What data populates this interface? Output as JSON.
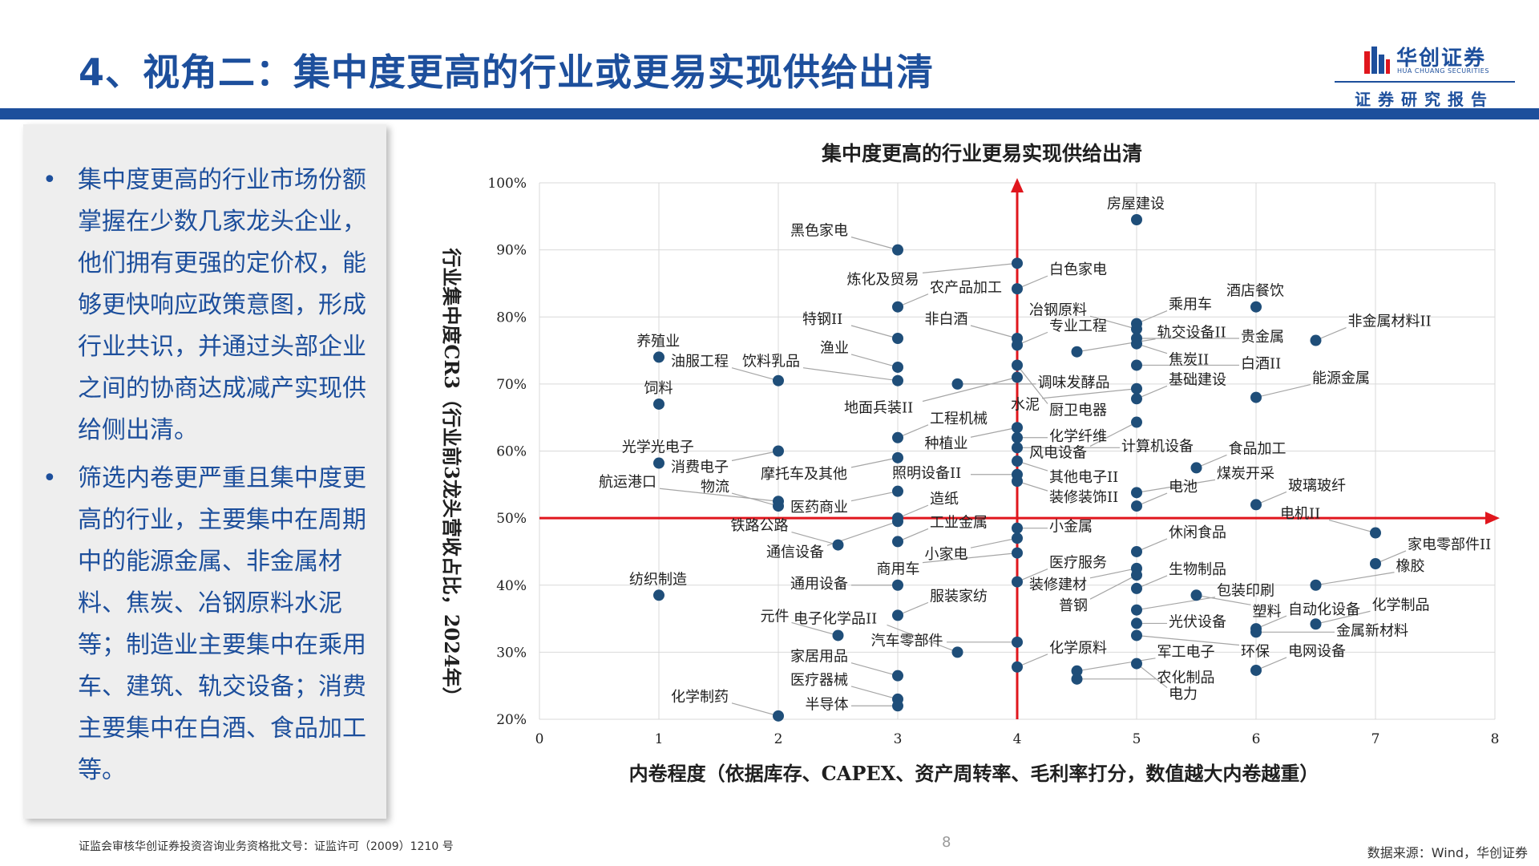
{
  "header": {
    "title": "4、视角二：集中度更高的行业或更易实现供给出清",
    "logo_name": "华创证券",
    "logo_en": "HUA CHUANG SECURITIES",
    "report_tag": "证券研究报告"
  },
  "sidebar": {
    "bullets": [
      "集中度更高的行业市场份额掌握在少数几家龙头企业，他们拥有更强的定价权，能够更快响应政策意图，形成行业共识，并通过头部企业之间的协商达成减产实现供给侧出清。",
      "筛选内卷更严重且集中度更高的行业，主要集中在周期中的能源金属、非金属材料、焦炭、冶钢原料水泥等；制造业主要集中在乘用车、建筑、轨交设备；消费主要集中在白酒、食品加工等。"
    ],
    "bullet_symbol": "•"
  },
  "footer": {
    "license": "证监会审核华创证券投资咨询业务资格批文号：证监许可（2009）1210 号",
    "page_number": "8",
    "source": "数据来源：Wind，华创证券"
  },
  "colors": {
    "brand": "#1d4f9c",
    "point": "#1f4e79",
    "reference_line": "#e0161d",
    "grid": "#d9d9d9"
  },
  "chart_data": {
    "type": "scatter",
    "title": "集中度更高的行业更易实现供给出清",
    "xlabel": "内卷程度（依据库存、CAPEX、资产周转率、毛利率打分，数值越大内卷越重）",
    "ylabel": "行业集中度CR3（行业前3龙头营收占比，2024年）",
    "xlim": [
      0,
      8
    ],
    "ylim": [
      20,
      100
    ],
    "x_ticks": [
      "0",
      "1",
      "2",
      "3",
      "4",
      "5",
      "6",
      "7",
      "8"
    ],
    "y_ticks": [
      "20%",
      "30%",
      "40%",
      "50%",
      "60%",
      "70%",
      "80%",
      "90%",
      "100%"
    ],
    "reference_lines": {
      "x": 4,
      "y": 50
    },
    "grid": true,
    "points": [
      {
        "label": "养殖业",
        "x": 1,
        "y": 74
      },
      {
        "label": "饲料",
        "x": 1,
        "y": 67
      },
      {
        "label": "光学光电子",
        "x": 1,
        "y": 58.2
      },
      {
        "label": "纺织制造",
        "x": 1,
        "y": 38.5
      },
      {
        "label": "油服工程",
        "x": 2,
        "y": 70.5
      },
      {
        "label": "消费电子",
        "x": 2,
        "y": 60
      },
      {
        "label": "航运港口",
        "x": 2,
        "y": 52.5
      },
      {
        "label": "物流",
        "x": 2,
        "y": 51.8
      },
      {
        "label": "元件",
        "x": 2.5,
        "y": 32.5
      },
      {
        "label": "铁路公路",
        "x": 2.5,
        "y": 46
      },
      {
        "label": "化学制药",
        "x": 2,
        "y": 20.5
      },
      {
        "label": "黑色家电",
        "x": 3,
        "y": 90
      },
      {
        "label": "农产品加工",
        "x": 3,
        "y": 81.5
      },
      {
        "label": "特钢II",
        "x": 3,
        "y": 76.8
      },
      {
        "label": "渔业",
        "x": 3,
        "y": 72.5
      },
      {
        "label": "饮料乳品",
        "x": 3,
        "y": 70.5
      },
      {
        "label": "工程机械",
        "x": 3,
        "y": 62
      },
      {
        "label": "摩托车及其他",
        "x": 3,
        "y": 59
      },
      {
        "label": "医药商业",
        "x": 3,
        "y": 54
      },
      {
        "label": "造纸",
        "x": 3,
        "y": 50
      },
      {
        "label": "通信设备",
        "x": 3,
        "y": 49.5
      },
      {
        "label": "工业金属",
        "x": 3,
        "y": 46.5
      },
      {
        "label": "通用设备",
        "x": 3,
        "y": 40
      },
      {
        "label": "服装家纺",
        "x": 3,
        "y": 35.5
      },
      {
        "label": "家居用品",
        "x": 3,
        "y": 26.5
      },
      {
        "label": "医疗器械",
        "x": 3,
        "y": 23
      },
      {
        "label": "半导体",
        "x": 3,
        "y": 22
      },
      {
        "label": "电子化学品II",
        "x": 3.5,
        "y": 30
      },
      {
        "label": "调味发酵品",
        "x": 3.5,
        "y": 70
      },
      {
        "label": "炼化及贸易",
        "x": 4,
        "y": 88
      },
      {
        "label": "白色家电",
        "x": 4,
        "y": 84.2
      },
      {
        "label": "非白酒",
        "x": 4,
        "y": 76.8
      },
      {
        "label": "专业工程",
        "x": 4,
        "y": 75.8
      },
      {
        "label": "厨卫电器",
        "x": 4,
        "y": 72.8
      },
      {
        "label": "地面兵装II",
        "x": 4,
        "y": 71
      },
      {
        "label": "种植业",
        "x": 4,
        "y": 63.5
      },
      {
        "label": "化学纤维",
        "x": 4,
        "y": 62
      },
      {
        "label": "计算机设备",
        "x": 4,
        "y": 60.5
      },
      {
        "label": "其他电子II",
        "x": 4,
        "y": 58.5
      },
      {
        "label": "照明设备II",
        "x": 4,
        "y": 56.5
      },
      {
        "label": "装修装饰II",
        "x": 4,
        "y": 55.5
      },
      {
        "label": "小金属",
        "x": 4,
        "y": 48.5
      },
      {
        "label": "小家电",
        "x": 4,
        "y": 47
      },
      {
        "label": "商用车",
        "x": 4,
        "y": 44.8
      },
      {
        "label": "医疗服务",
        "x": 4,
        "y": 40.5
      },
      {
        "label": "汽车零部件",
        "x": 4,
        "y": 31.5
      },
      {
        "label": "化学原料",
        "x": 4,
        "y": 27.8
      },
      {
        "label": "轨交设备II",
        "x": 4.5,
        "y": 74.8
      },
      {
        "label": "军工电子",
        "x": 4.5,
        "y": 27.2
      },
      {
        "label": "农化制品",
        "x": 4.5,
        "y": 26
      },
      {
        "label": "房屋建设",
        "x": 5,
        "y": 94.5
      },
      {
        "label": "乘用车",
        "x": 5,
        "y": 79
      },
      {
        "label": "冶钢原料",
        "x": 5,
        "y": 78.2
      },
      {
        "label": "贵金属",
        "x": 5,
        "y": 76.8
      },
      {
        "label": "焦炭II",
        "x": 5,
        "y": 76
      },
      {
        "label": "白酒II",
        "x": 5,
        "y": 72.8
      },
      {
        "label": "水泥",
        "x": 5,
        "y": 69.3
      },
      {
        "label": "基础建设",
        "x": 5,
        "y": 67.8
      },
      {
        "label": "风电设备",
        "x": 5,
        "y": 64.3
      },
      {
        "label": "煤炭开采",
        "x": 5,
        "y": 53.8
      },
      {
        "label": "电池",
        "x": 5,
        "y": 51.8
      },
      {
        "label": "休闲食品",
        "x": 5,
        "y": 45
      },
      {
        "label": "装修建材",
        "x": 5,
        "y": 42.5
      },
      {
        "label": "普钢",
        "x": 5,
        "y": 41.5
      },
      {
        "label": "生物制品",
        "x": 5,
        "y": 39.5
      },
      {
        "label": "包装印刷",
        "x": 5,
        "y": 36.3
      },
      {
        "label": "光伏设备",
        "x": 5,
        "y": 34.3
      },
      {
        "label": "环保",
        "x": 5,
        "y": 32.5
      },
      {
        "label": "电力",
        "x": 5,
        "y": 28.3
      },
      {
        "label": "食品加工",
        "x": 5.5,
        "y": 57.5
      },
      {
        "label": "塑料",
        "x": 5.5,
        "y": 38.5
      },
      {
        "label": "酒店餐饮",
        "x": 6,
        "y": 81.5
      },
      {
        "label": "能源金属",
        "x": 6,
        "y": 68
      },
      {
        "label": "玻璃玻纤",
        "x": 6,
        "y": 52
      },
      {
        "label": "自动化设备",
        "x": 6,
        "y": 33.5
      },
      {
        "label": "金属新材料",
        "x": 6,
        "y": 33
      },
      {
        "label": "电网设备",
        "x": 6,
        "y": 27.3
      },
      {
        "label": "非金属材料II",
        "x": 6.5,
        "y": 76.5
      },
      {
        "label": "橡胶",
        "x": 6.5,
        "y": 40
      },
      {
        "label": "化学制品",
        "x": 6.5,
        "y": 34.2
      },
      {
        "label": "电机II",
        "x": 7,
        "y": 47.8
      },
      {
        "label": "家电零部件II",
        "x": 7,
        "y": 43.2
      }
    ]
  }
}
